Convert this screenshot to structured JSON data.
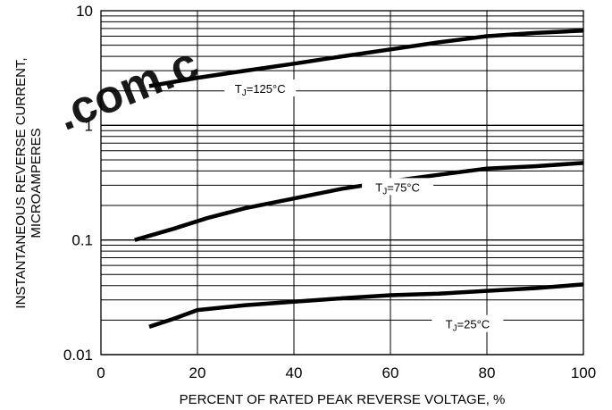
{
  "chart_data": {
    "type": "line",
    "title": "",
    "xlabel": "PERCENT OF RATED PEAK REVERSE VOLTAGE, %",
    "ylabel": "INSTANTANEOUS REVERSE CURRENT, MICROAMPERES",
    "ylabel_lines": [
      "INSTANTANEOUS REVERSE CURRENT,",
      "MICROAMPERES"
    ],
    "x_scale": "linear",
    "y_scale": "log",
    "xlim": [
      0,
      100
    ],
    "ylim": [
      0.01,
      10
    ],
    "x_ticks": [
      {
        "value": 0,
        "label": "0"
      },
      {
        "value": 20,
        "label": "20"
      },
      {
        "value": 40,
        "label": "40"
      },
      {
        "value": 60,
        "label": "60"
      },
      {
        "value": 80,
        "label": "80"
      },
      {
        "value": 100,
        "label": "100"
      }
    ],
    "y_ticks": [
      {
        "value": 0.01,
        "label": "0.01"
      },
      {
        "value": 0.1,
        "label": "0.1"
      },
      {
        "value": 1,
        "label": "1"
      },
      {
        "value": 10,
        "label": "10"
      }
    ],
    "grid": true,
    "series": [
      {
        "name": "TJ=125°C",
        "label": {
          "main": "T",
          "sub": "J",
          "rest": "=125°C",
          "at": [
            33,
            2.1
          ]
        },
        "x": [
          10,
          20,
          30,
          40,
          50,
          60,
          70,
          80,
          90,
          100
        ],
        "y": [
          2.2,
          2.6,
          3.0,
          3.45,
          4.0,
          4.6,
          5.3,
          6.0,
          6.4,
          6.7
        ]
      },
      {
        "name": "TJ=75°C",
        "label": {
          "main": "T",
          "sub": "J",
          "rest": "=75°C",
          "at": [
            61.5,
            0.29
          ]
        },
        "x": [
          7,
          15,
          22,
          30,
          40,
          50,
          60,
          70,
          80,
          90,
          100
        ],
        "y": [
          0.1,
          0.125,
          0.155,
          0.19,
          0.23,
          0.28,
          0.325,
          0.37,
          0.42,
          0.44,
          0.47
        ]
      },
      {
        "name": "TJ=25°C",
        "label": {
          "main": "T",
          "sub": "J",
          "rest": "=25°C",
          "at": [
            76,
            0.0185
          ]
        },
        "x": [
          10,
          15,
          20,
          30,
          40,
          50,
          60,
          70,
          80,
          90,
          100
        ],
        "y": [
          0.0175,
          0.0205,
          0.0245,
          0.027,
          0.029,
          0.031,
          0.033,
          0.034,
          0.036,
          0.038,
          0.041
        ]
      }
    ]
  },
  "watermark": {
    "text": ".com.c",
    "color": "#e0211f"
  },
  "colors": {
    "line": "#000000",
    "grid": "#000000",
    "background": "#ffffff"
  }
}
